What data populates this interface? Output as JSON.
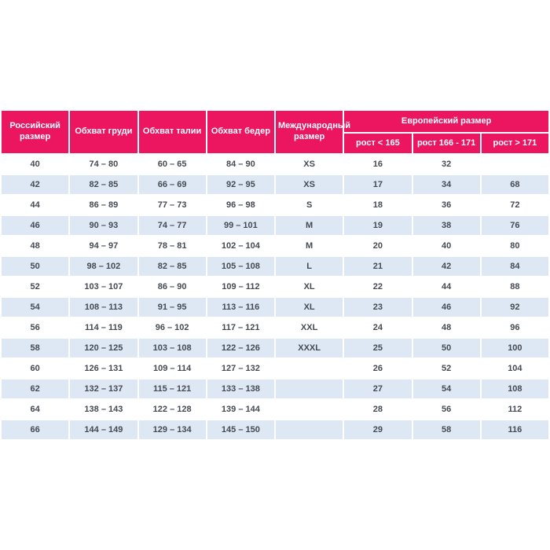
{
  "table": {
    "columns": [
      {
        "label": "Российский размер"
      },
      {
        "label": "Обхват груди"
      },
      {
        "label": "Обхват талии"
      },
      {
        "label": "Обхват бедер"
      },
      {
        "label": "Международный размер"
      }
    ],
    "european_group": {
      "label": "Европейский размер",
      "subcolumns": [
        "рост < 165",
        "рост 166 - 171",
        "рост > 171"
      ]
    },
    "rows": [
      [
        "40",
        "74 – 80",
        "60 – 65",
        "84 – 90",
        "XS",
        "16",
        "32",
        ""
      ],
      [
        "42",
        "82 – 85",
        "66 – 69",
        "92 – 95",
        "XS",
        "17",
        "34",
        "68"
      ],
      [
        "44",
        "86 – 89",
        "77 – 73",
        "96 – 98",
        "S",
        "18",
        "36",
        "72"
      ],
      [
        "46",
        "90 – 93",
        "74 – 77",
        "99 – 101",
        "M",
        "19",
        "38",
        "76"
      ],
      [
        "48",
        "94 – 97",
        "78 – 81",
        "102 – 104",
        "M",
        "20",
        "40",
        "80"
      ],
      [
        "50",
        "98 – 102",
        "82 – 85",
        "105 – 108",
        "L",
        "21",
        "42",
        "84"
      ],
      [
        "52",
        "103 – 107",
        "86 – 90",
        "109 – 112",
        "XL",
        "22",
        "44",
        "88"
      ],
      [
        "54",
        "108 – 113",
        "91 – 95",
        "113 – 116",
        "XL",
        "23",
        "46",
        "92"
      ],
      [
        "56",
        "114 – 119",
        "96 – 102",
        "117 – 121",
        "XXL",
        "24",
        "48",
        "96"
      ],
      [
        "58",
        "120 – 125",
        "103 – 108",
        "122 – 126",
        "XXXL",
        "25",
        "50",
        "100"
      ],
      [
        "60",
        "126 – 131",
        "109 – 114",
        "127 – 132",
        "",
        "26",
        "52",
        "104"
      ],
      [
        "62",
        "132 – 137",
        "115 – 121",
        "133 – 138",
        "",
        "27",
        "54",
        "108"
      ],
      [
        "64",
        "138 – 143",
        "122 – 128",
        "139 – 144",
        "",
        "28",
        "56",
        "112"
      ],
      [
        "66",
        "144 – 149",
        "129 – 134",
        "145 – 150",
        "",
        "29",
        "58",
        "116"
      ]
    ],
    "colors": {
      "header_bg": "#EC155F",
      "header_text": "#FFFFFF",
      "row_alt_bg": "#DEE8F4",
      "body_text": "#454A52"
    }
  }
}
